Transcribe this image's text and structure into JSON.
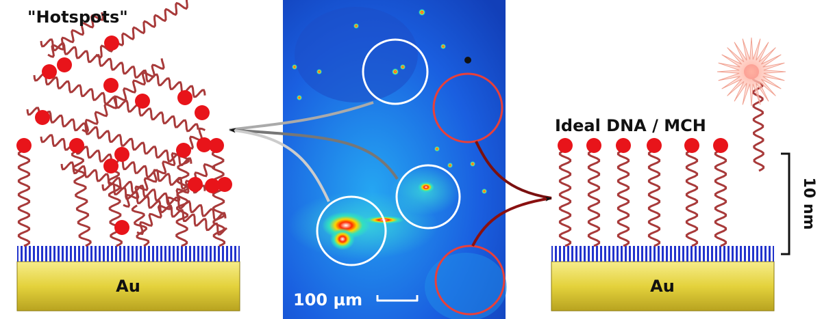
{
  "labels": {
    "hotspots": "\"Hotspots\"",
    "ideal": "Ideal DNA / MCH",
    "au_left": "Au",
    "au_right": "Au",
    "scale_image": "100 µm",
    "scale_nm": "10 nm"
  }
}
